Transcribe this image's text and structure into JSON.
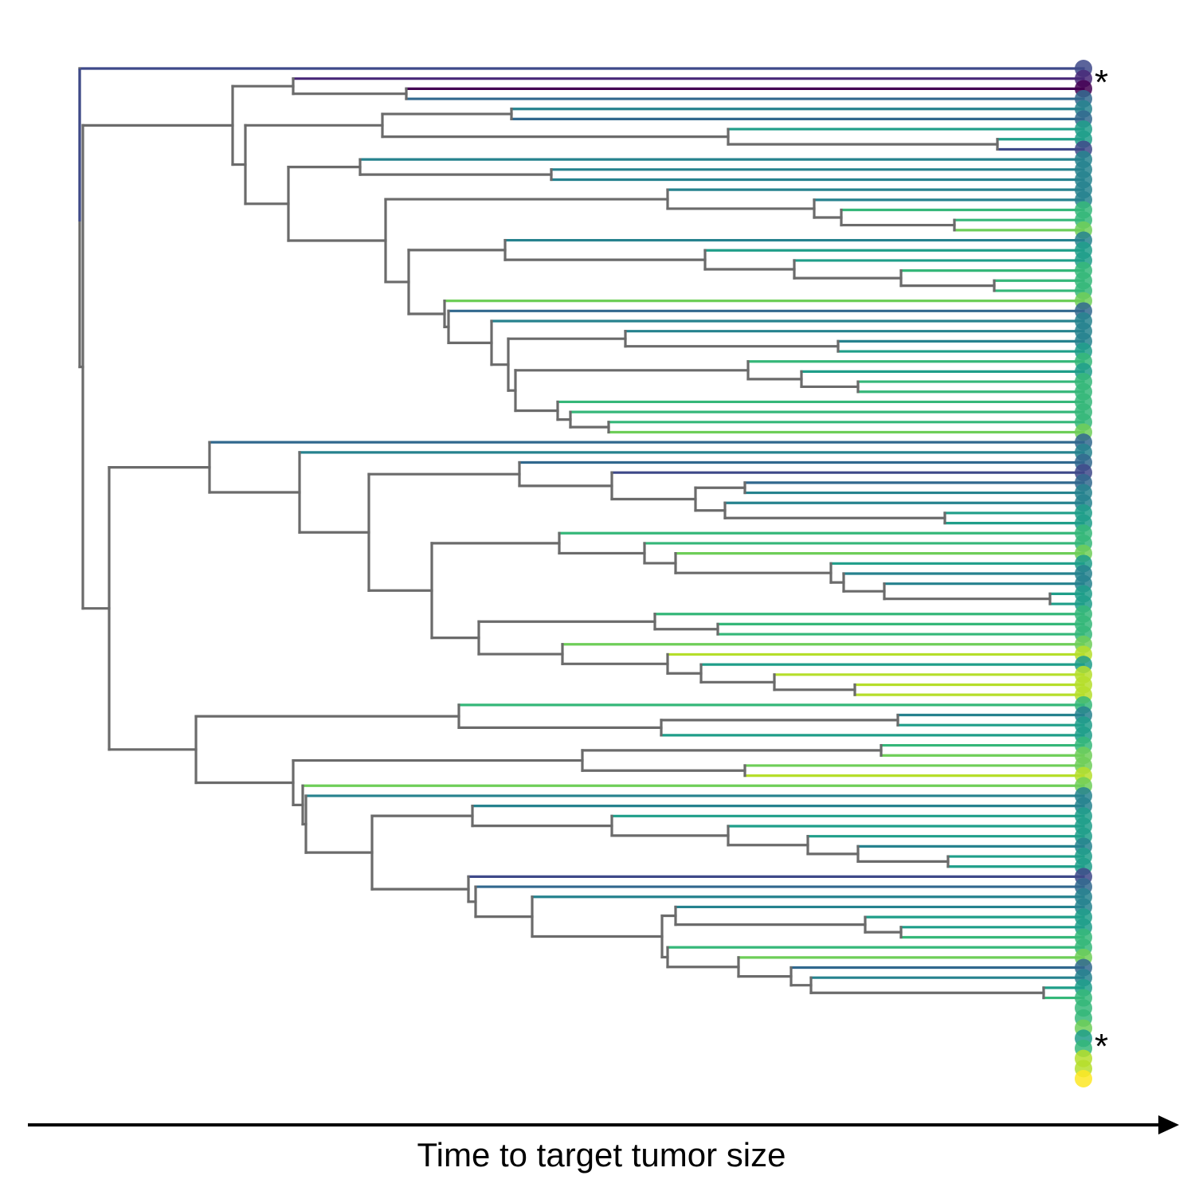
{
  "figure": {
    "axis_label": "Time to target tumor size",
    "marker_text": "*",
    "palette": [
      "#440154",
      "#482878",
      "#3e4989",
      "#31688e",
      "#26828e",
      "#1f9e89",
      "#35b779",
      "#6ece58",
      "#b5de2b",
      "#fde725"
    ],
    "internal_branch_color": "#6b6b6b",
    "axis_color": "#000000"
  }
}
